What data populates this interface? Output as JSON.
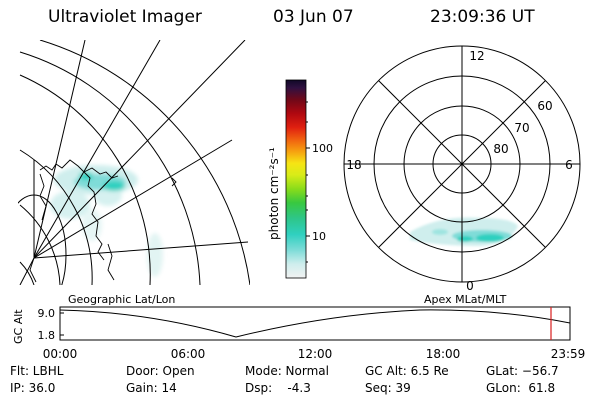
{
  "header": {
    "title": "Ultraviolet Imager",
    "date": "03 Jun 07",
    "time": "23:09:36 UT"
  },
  "colorbar": {
    "label": "photon cm⁻²s⁻¹",
    "ticks": [
      "100",
      "10"
    ]
  },
  "polar_plot": {
    "mlt_labels": [
      "12",
      "18",
      "6",
      "0"
    ],
    "lat_labels": [
      "60",
      "70",
      "80"
    ]
  },
  "map_plot": {
    "label": "Geographic Lat/Lon"
  },
  "altitude_plot": {
    "ylabel": "GC Alt",
    "yticks": [
      "9.0",
      "1.8"
    ],
    "xticks": [
      "00:00",
      "06:00",
      "12:00",
      "18:00",
      "23:59"
    ],
    "right_label": "Apex MLat/MLT"
  },
  "info": {
    "filter": "Flt: LBHL",
    "ip": "IP: 36.0",
    "door": "Door: Open",
    "gain": "Gain: 14",
    "mode": "Mode: Normal",
    "dsp": "Dsp:    -4.3",
    "gc_alt": "GC Alt: 6.5 Re",
    "seq": "Seq: 39",
    "glat": "GLat: −56.7",
    "glon": "GLon:  61.8"
  }
}
